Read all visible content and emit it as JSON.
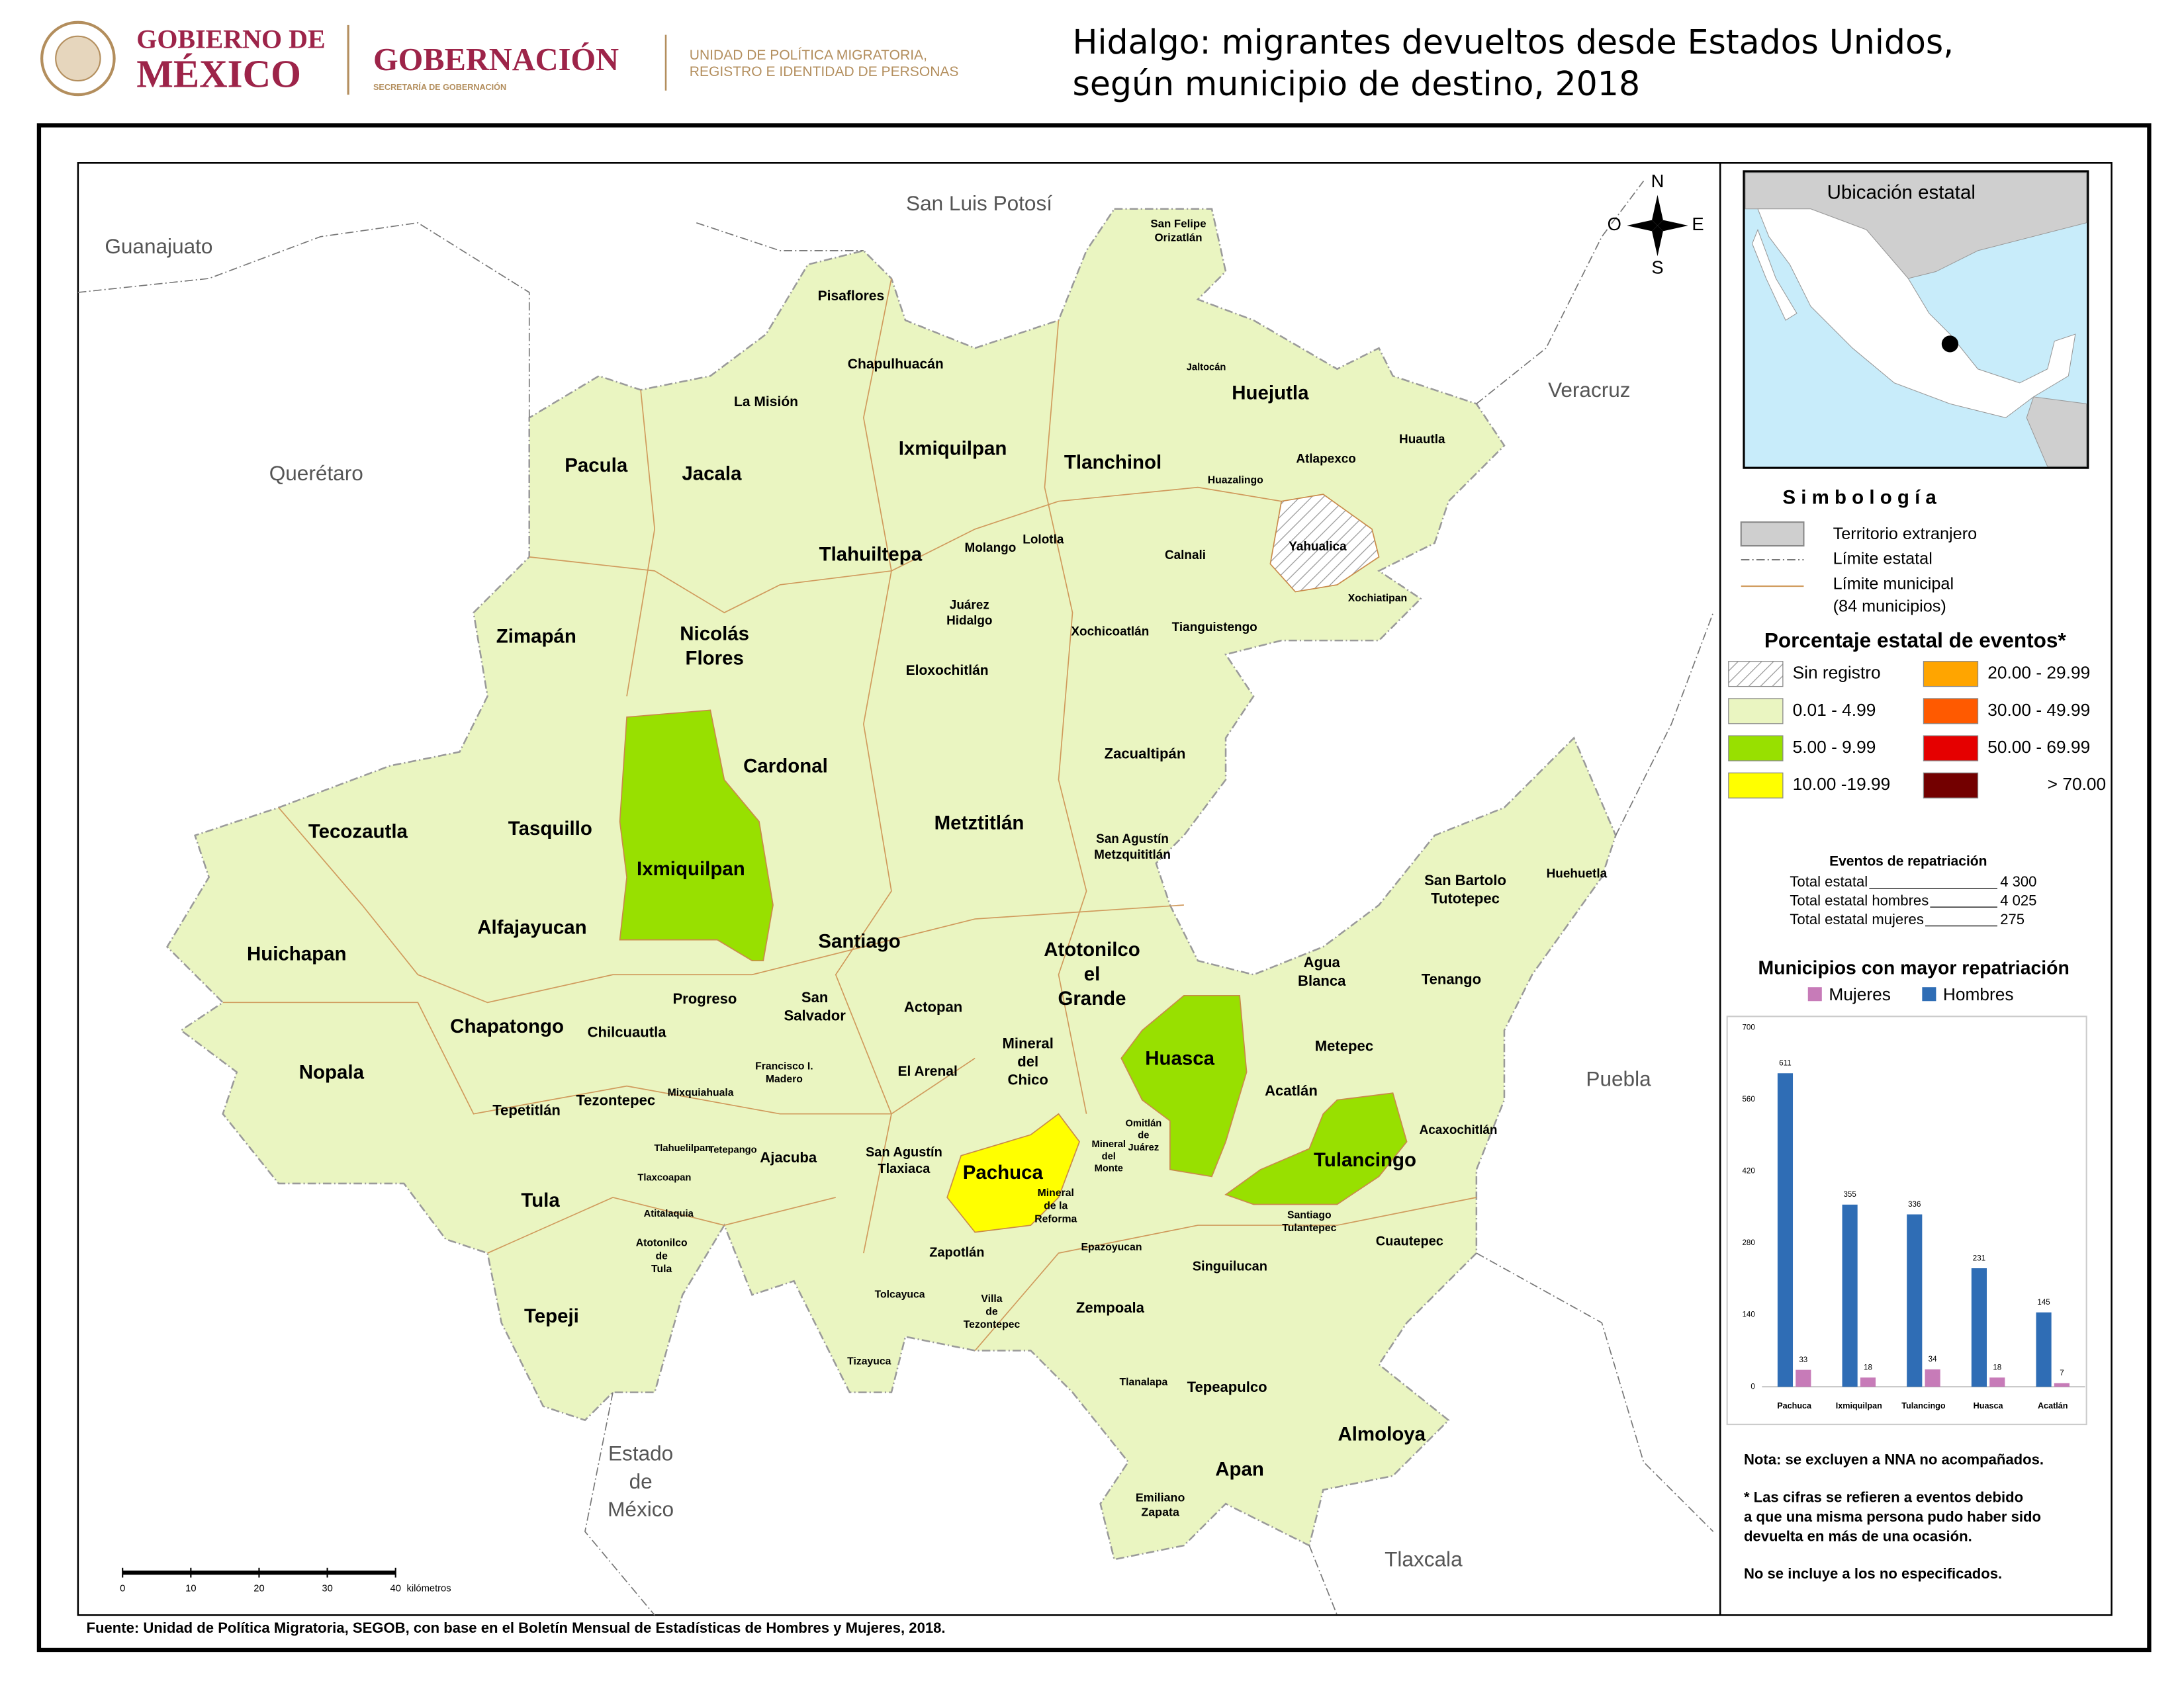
{
  "header": {
    "gov_line1": "GOBIERNO DE",
    "gov_line2": "MÉXICO",
    "ministry": "GOBERNACIÓN",
    "ministry_sub": "SECRETARÍA DE GOBERNACIÓN",
    "unit_line1": "UNIDAD DE POLÍTICA MIGRATORIA,",
    "unit_line2": "REGISTRO E IDENTIDAD DE PERSONAS",
    "title_line1": "Hidalgo: migrantes devueltos desde Estados Unidos,",
    "title_line2": "según municipio de destino, 2018"
  },
  "map": {
    "neighbors": [
      [
        "Guanajuato"
      ],
      [
        "San Luis Potosí"
      ],
      [
        "Veracruz"
      ],
      [
        "Querétaro"
      ],
      [
        "Puebla"
      ],
      [
        "Estado",
        "de",
        "México"
      ],
      [
        "Tlaxcala"
      ]
    ],
    "municipalities": [
      [
        "San Felipe",
        "Orizatlán"
      ],
      [
        "Pisaflores"
      ],
      [
        "Chapulhuacán"
      ],
      [
        "La Misión"
      ],
      [
        "Jaltocán"
      ],
      [
        "Huejutla"
      ],
      [
        "Pacula"
      ],
      [
        "Jacala"
      ],
      [
        "Ixmiquilpan"
      ],
      [
        "Tlanchinol"
      ],
      [
        "Atlapexco"
      ],
      [
        "Huautla"
      ],
      [
        "Huazalingo"
      ],
      [
        "Tlahuiltepa"
      ],
      [
        "Molango"
      ],
      [
        "Lolotla"
      ],
      [
        "Calnali"
      ],
      [
        "Yahualica"
      ],
      [
        "Xochiatipan"
      ],
      [
        "Juárez",
        "Hidalgo"
      ],
      [
        "Zimapán"
      ],
      [
        "Nicolás",
        "Flores"
      ],
      [
        "Xochicoatlán"
      ],
      [
        "Tianguistengo"
      ],
      [
        "Eloxochitlán"
      ],
      [
        "Cardonal"
      ],
      [
        "Zacualtipán"
      ],
      [
        "Tecozautla"
      ],
      [
        "Tasquillo"
      ],
      [
        "Metztitlán"
      ],
      [
        "San Agustín",
        "Metzquititlán"
      ],
      [
        "Ixmiquilpan"
      ],
      [
        "San Bartolo",
        "Tutotepec"
      ],
      [
        "Huehuetla"
      ],
      [
        "Alfajayucan"
      ],
      [
        "Santiago"
      ],
      [
        "Atotonilco",
        "el",
        "Grande"
      ],
      [
        "Huichapan"
      ],
      [
        "Agua",
        "Blanca"
      ],
      [
        "Tenango"
      ],
      [
        "Progreso"
      ],
      [
        "San",
        "Salvador"
      ],
      [
        "Actopan"
      ],
      [
        "Chapatongo"
      ],
      [
        "Chilcuautla"
      ],
      [
        "Mineral",
        "del",
        "Chico"
      ],
      [
        "Metepec"
      ],
      [
        "Huasca"
      ],
      [
        "Nopala"
      ],
      [
        "Francisco I.",
        "Madero"
      ],
      [
        "El Arenal"
      ],
      [
        "Acatlán"
      ],
      [
        "Mixquiahuala"
      ],
      [
        "Tepetitlán"
      ],
      [
        "Tezontepec"
      ],
      [
        "Omitlán",
        "de",
        "Juárez"
      ],
      [
        "Mineral",
        "del",
        "Monte"
      ],
      [
        "Acaxochitlán"
      ],
      [
        "Tlahuelilpan"
      ],
      [
        "Tetepango"
      ],
      [
        "San Agustín",
        "Tlaxiaca"
      ],
      [
        "Tulancingo"
      ],
      [
        "Ajacuba"
      ],
      [
        "Pachuca"
      ],
      [
        "Tlaxcoapan"
      ],
      [
        "Mineral",
        "de la",
        "Reforma"
      ],
      [
        "Tula"
      ],
      [
        "Atitalaquia"
      ],
      [
        "Santiago",
        "Tulantepec"
      ],
      [
        "Cuautepec"
      ],
      [
        "Atotonilco",
        "de",
        "Tula"
      ],
      [
        "Epazoyucan"
      ],
      [
        "Zapotlán"
      ],
      [
        "Singuilucan"
      ],
      [
        "Tolcayuca"
      ],
      [
        "Villa",
        "de",
        "Tezontepec"
      ],
      [
        "Zempoala"
      ],
      [
        "Tepeji"
      ],
      [
        "Tizayuca"
      ],
      [
        "Tlanalapa"
      ],
      [
        "Tepeapulco"
      ],
      [
        "Almoloya"
      ],
      [
        "Apan"
      ],
      [
        "Emiliano",
        "Zapata"
      ]
    ],
    "compass": {
      "north": "N",
      "south": "S",
      "west": "O",
      "east": "E"
    },
    "scale": {
      "ticks": [
        "0",
        "10",
        "20",
        "30",
        "40"
      ],
      "unit": "kilómetros"
    },
    "inset_title": "Ubicación estatal"
  },
  "legend": {
    "title": "S i m b o l o g í a",
    "foreign": "Territorio extranjero",
    "state_limit": "Límite estatal",
    "municipal_limit": "Límite municipal",
    "municipal_count": "(84 municipios)",
    "pct_title": "Porcentaje estatal de eventos*",
    "classes": [
      {
        "label": "Sin registro"
      },
      {
        "label": "0.01  - 4.99",
        "color": "#eaf5c1"
      },
      {
        "label": "5.00  - 9.99",
        "color": "#98e000"
      },
      {
        "label": "10.00 -19.99",
        "color": "#ffff00"
      },
      {
        "label": "20.00 - 29.99",
        "color": "#ffa500"
      },
      {
        "label": "30.00 - 49.99",
        "color": "#ff5a00"
      },
      {
        "label": "50.00 - 69.99",
        "color": "#e50000"
      },
      {
        "label": "> 70.00",
        "color": "#730000"
      }
    ]
  },
  "summary": {
    "title": "Eventos de repatriación",
    "rows": [
      [
        "Total estatal",
        "4 300"
      ],
      [
        "Total estatal hombres",
        "4 025"
      ],
      [
        "Total estatal mujeres",
        "275"
      ]
    ]
  },
  "chart_data": {
    "type": "bar",
    "title": "Municipios con mayor repatriación",
    "categories": [
      "Pachuca",
      "Ixmiquilpan",
      "Tulancingo",
      "Huasca",
      "Acatlán"
    ],
    "series": [
      {
        "name": "Mujeres",
        "color": "#c77bb8",
        "values": [
          33,
          18,
          34,
          18,
          7
        ]
      },
      {
        "name": "Hombres",
        "color": "#2f6db5",
        "values": [
          611,
          355,
          336,
          231,
          145
        ]
      }
    ],
    "ylim": [
      0,
      700
    ],
    "yticks": [
      0,
      140,
      280,
      420,
      560,
      700
    ],
    "grid": false
  },
  "notes": [
    "Nota: se excluyen a NNA no acompañados.",
    "* Las cifras se refieren a eventos debido",
    "a que una misma persona pudo haber sido",
    "devuelta en más de una ocasión.",
    "No se incluye a los no especificados."
  ],
  "source": "Fuente: Unidad de Política Migratoria, SEGOB, con base en el Boletín Mensual de Estadísticas de Hombres y Mujeres, 2018."
}
